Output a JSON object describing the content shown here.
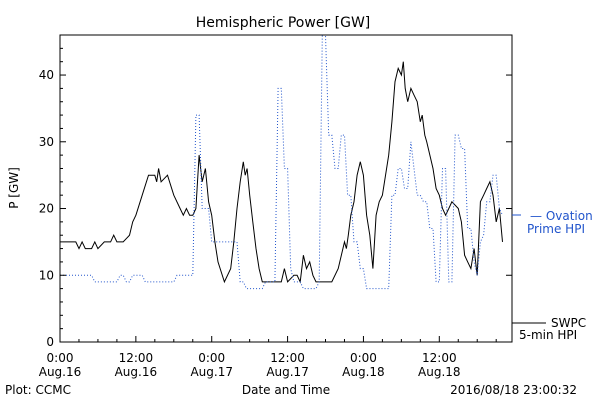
{
  "chart_data": {
    "type": "line",
    "title": "Hemispheric Power [GW]",
    "ylabel": "P [GW]",
    "xlabel": "Date and Time",
    "ylim": [
      0,
      46
    ],
    "xlim": [
      0,
      71.5
    ],
    "y_ticks": [
      0,
      10,
      20,
      30,
      40
    ],
    "x_ticks": [
      {
        "x": 0,
        "time": "0:00",
        "date": "Aug.16"
      },
      {
        "x": 12,
        "time": "12:00",
        "date": "Aug.16"
      },
      {
        "x": 24,
        "time": "0:00",
        "date": "Aug.17"
      },
      {
        "x": 36,
        "time": "12:00",
        "date": "Aug.17"
      },
      {
        "x": 48,
        "time": "0:00",
        "date": "Aug.18"
      },
      {
        "x": 60,
        "time": "12:00",
        "date": "Aug.18"
      }
    ],
    "series": [
      {
        "name": "SWPC 5-min HPI",
        "color": "#000000",
        "style": "solid",
        "points": [
          [
            0,
            15
          ],
          [
            2.5,
            15
          ],
          [
            3,
            14
          ],
          [
            3.5,
            15
          ],
          [
            4,
            14
          ],
          [
            5,
            14
          ],
          [
            5.5,
            15
          ],
          [
            6,
            14
          ],
          [
            7,
            15
          ],
          [
            8,
            15
          ],
          [
            8.5,
            16
          ],
          [
            9,
            15
          ],
          [
            10,
            15
          ],
          [
            11,
            16
          ],
          [
            11.5,
            18
          ],
          [
            12,
            19
          ],
          [
            13,
            22
          ],
          [
            14,
            25
          ],
          [
            15,
            25
          ],
          [
            15.3,
            24
          ],
          [
            15.6,
            26
          ],
          [
            16,
            24
          ],
          [
            17,
            25
          ],
          [
            18,
            22
          ],
          [
            19,
            20
          ],
          [
            19.5,
            19
          ],
          [
            20,
            20
          ],
          [
            20.5,
            19
          ],
          [
            21,
            19
          ],
          [
            21.5,
            20
          ],
          [
            22,
            28
          ],
          [
            22.5,
            24
          ],
          [
            23,
            26
          ],
          [
            23.5,
            21
          ],
          [
            24,
            19
          ],
          [
            24.5,
            15
          ],
          [
            25,
            12
          ],
          [
            26,
            9
          ],
          [
            27,
            11
          ],
          [
            27.5,
            15
          ],
          [
            28,
            20
          ],
          [
            28.5,
            24
          ],
          [
            29,
            27
          ],
          [
            29.3,
            25
          ],
          [
            29.6,
            26
          ],
          [
            30,
            22
          ],
          [
            30.5,
            18
          ],
          [
            31,
            14
          ],
          [
            31.5,
            11
          ],
          [
            32,
            9
          ],
          [
            33,
            9
          ],
          [
            34,
            9
          ],
          [
            35,
            9
          ],
          [
            35.5,
            11
          ],
          [
            36,
            9
          ],
          [
            37,
            10
          ],
          [
            37.5,
            10
          ],
          [
            38,
            9
          ],
          [
            38.5,
            13
          ],
          [
            39,
            11
          ],
          [
            39.5,
            12
          ],
          [
            40,
            10
          ],
          [
            40.5,
            9
          ],
          [
            41,
            9
          ],
          [
            42,
            9
          ],
          [
            43,
            9
          ],
          [
            44,
            11
          ],
          [
            45,
            15
          ],
          [
            45.3,
            14
          ],
          [
            45.6,
            16
          ],
          [
            46,
            19
          ],
          [
            46.5,
            21
          ],
          [
            47,
            25
          ],
          [
            47.5,
            27
          ],
          [
            48,
            25
          ],
          [
            48.5,
            19
          ],
          [
            49,
            16
          ],
          [
            49.5,
            11
          ],
          [
            50,
            19
          ],
          [
            50.5,
            21
          ],
          [
            51,
            22
          ],
          [
            52,
            28
          ],
          [
            52.5,
            33
          ],
          [
            53,
            39
          ],
          [
            53.5,
            41
          ],
          [
            54,
            40
          ],
          [
            54.3,
            42
          ],
          [
            54.6,
            38
          ],
          [
            55,
            36
          ],
          [
            55.5,
            38
          ],
          [
            56,
            37
          ],
          [
            56.5,
            36
          ],
          [
            57,
            33
          ],
          [
            57.3,
            34
          ],
          [
            57.7,
            31
          ],
          [
            58,
            30
          ],
          [
            59,
            26
          ],
          [
            59.5,
            23
          ],
          [
            60,
            22
          ],
          [
            60.5,
            20
          ],
          [
            61,
            19
          ],
          [
            61.5,
            20
          ],
          [
            62,
            21
          ],
          [
            63,
            20
          ],
          [
            63.5,
            18
          ],
          [
            64,
            13
          ],
          [
            64.5,
            12
          ],
          [
            65,
            11
          ],
          [
            65.5,
            14
          ],
          [
            66,
            10
          ],
          [
            66.5,
            21
          ],
          [
            67,
            22
          ],
          [
            67.5,
            23
          ],
          [
            68,
            24
          ],
          [
            68.5,
            22
          ],
          [
            69,
            18
          ],
          [
            69.5,
            20
          ],
          [
            70,
            15
          ]
        ]
      },
      {
        "name": "Ovation Prime HPI",
        "color": "#2255cc",
        "style": "dotted",
        "points": [
          [
            0,
            10
          ],
          [
            5,
            10
          ],
          [
            5.5,
            9
          ],
          [
            9,
            9
          ],
          [
            9.5,
            10
          ],
          [
            10,
            10
          ],
          [
            10.5,
            9
          ],
          [
            11,
            9
          ],
          [
            11.5,
            10
          ],
          [
            13,
            10
          ],
          [
            13.5,
            9
          ],
          [
            18,
            9
          ],
          [
            18.5,
            10
          ],
          [
            21,
            10
          ],
          [
            21.5,
            34
          ],
          [
            22,
            34
          ],
          [
            22.5,
            20
          ],
          [
            23.5,
            20
          ],
          [
            24,
            15
          ],
          [
            28,
            15
          ],
          [
            28.5,
            9
          ],
          [
            29,
            9
          ],
          [
            29.5,
            8
          ],
          [
            32,
            8
          ],
          [
            32.5,
            9
          ],
          [
            34,
            9
          ],
          [
            34.5,
            38
          ],
          [
            35,
            38
          ],
          [
            35.5,
            26
          ],
          [
            36,
            26
          ],
          [
            36.5,
            11
          ],
          [
            37,
            9
          ],
          [
            38,
            9
          ],
          [
            38.5,
            8
          ],
          [
            40.5,
            8
          ],
          [
            41,
            9
          ],
          [
            41.5,
            46
          ],
          [
            42,
            46
          ],
          [
            42.5,
            31
          ],
          [
            43,
            31
          ],
          [
            43.5,
            26
          ],
          [
            44,
            26
          ],
          [
            44.5,
            31
          ],
          [
            45,
            31
          ],
          [
            45.5,
            22
          ],
          [
            46,
            22
          ],
          [
            46.5,
            15
          ],
          [
            47,
            15
          ],
          [
            47.5,
            11
          ],
          [
            48,
            11
          ],
          [
            48.5,
            8
          ],
          [
            52,
            8
          ],
          [
            52.5,
            22
          ],
          [
            53,
            22
          ],
          [
            53.5,
            26
          ],
          [
            54,
            26
          ],
          [
            54.5,
            23
          ],
          [
            55,
            23
          ],
          [
            55.5,
            30
          ],
          [
            56,
            26
          ],
          [
            56.5,
            22
          ],
          [
            57,
            22
          ],
          [
            57.5,
            21
          ],
          [
            58,
            21
          ],
          [
            58.5,
            17
          ],
          [
            59,
            17
          ],
          [
            59.5,
            9
          ],
          [
            60,
            9
          ],
          [
            60.5,
            26
          ],
          [
            61,
            26
          ],
          [
            61.5,
            9
          ],
          [
            62,
            9
          ],
          [
            62.5,
            31
          ],
          [
            63,
            31
          ],
          [
            63.5,
            29
          ],
          [
            64,
            29
          ],
          [
            64.5,
            17
          ],
          [
            65,
            17
          ],
          [
            65.5,
            12
          ],
          [
            66,
            10
          ],
          [
            66.5,
            15
          ],
          [
            67,
            16
          ],
          [
            67.5,
            21
          ],
          [
            68,
            21
          ],
          [
            68.5,
            25
          ],
          [
            69,
            25
          ],
          [
            69.5,
            20
          ],
          [
            70,
            19
          ]
        ]
      }
    ]
  },
  "labels": {
    "plot_credit": "Plot: CCMC",
    "timestamp": "2016/08/18 23:00:32",
    "ovation_line1": "— Ovation",
    "ovation_line2": "Prime HPI",
    "swpc_line1": "SWPC",
    "swpc_line2": "5-min HPI"
  }
}
